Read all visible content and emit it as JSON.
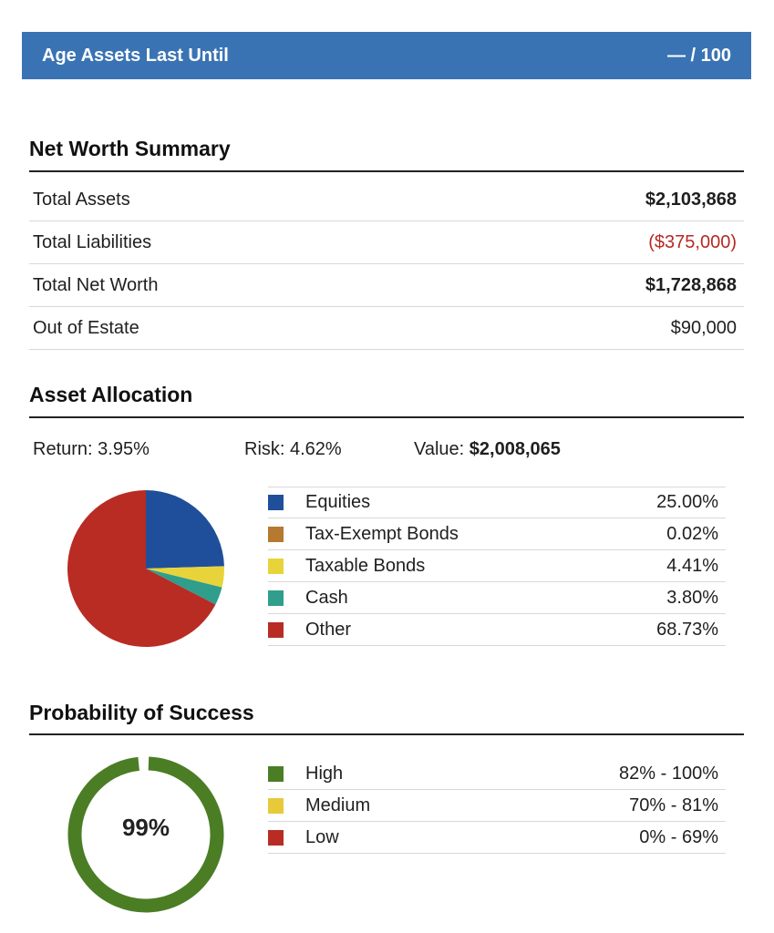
{
  "header": {
    "title": "Age Assets Last Until",
    "value": "— / 100",
    "color": "#3a73b3"
  },
  "net_worth": {
    "title": "Net Worth Summary",
    "rows": [
      {
        "label": "Total Assets",
        "value": "$2,103,868",
        "style": "bold"
      },
      {
        "label": "Total Liabilities",
        "value": "($375,000)",
        "style": "negative"
      },
      {
        "label": "Total Net Worth",
        "value": "$1,728,868",
        "style": "bold"
      },
      {
        "label": "Out of Estate",
        "value": "$90,000",
        "style": "normal"
      }
    ],
    "negative_color": "#b52a24"
  },
  "allocation": {
    "title": "Asset Allocation",
    "return_text": "Return: 3.95%",
    "risk_text": "Risk: 4.62%",
    "value_label": "Value:",
    "value_amount": "$2,008,065",
    "items": [
      {
        "label": "Equities",
        "value": "25.00%",
        "percent": 25.0,
        "color": "#1f4f9a"
      },
      {
        "label": "Tax-Exempt Bonds",
        "value": "0.02%",
        "percent": 0.02,
        "color": "#b5792f"
      },
      {
        "label": "Taxable Bonds",
        "value": "4.41%",
        "percent": 4.41,
        "color": "#e8d43a"
      },
      {
        "label": "Cash",
        "value": "3.80%",
        "percent": 3.8,
        "color": "#2f9e8c"
      },
      {
        "label": "Other",
        "value": "68.73%",
        "percent": 68.73,
        "color": "#b82c24"
      }
    ]
  },
  "probability": {
    "title": "Probability of Success",
    "value_text": "99%",
    "percent": 99,
    "ring_color": "#4b7d25",
    "items": [
      {
        "label": "High",
        "value": "82% - 100%",
        "color": "#4b7d25"
      },
      {
        "label": "Medium",
        "value": "70% - 81%",
        "color": "#e8c93a"
      },
      {
        "label": "Low",
        "value": "0% - 69%",
        "color": "#b82c24"
      }
    ]
  }
}
